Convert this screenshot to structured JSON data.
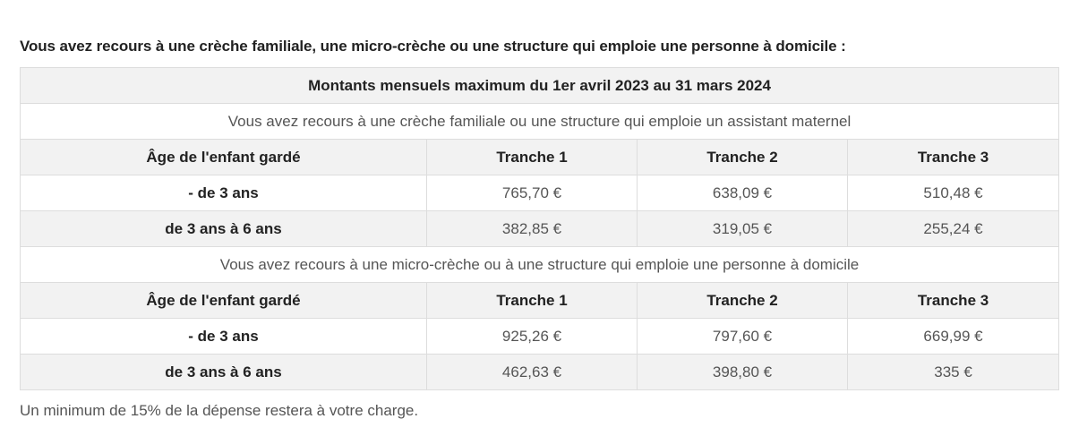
{
  "intro": "Vous avez recours à une crèche familiale, une micro-crèche ou une structure qui emploie une personne à domicile :",
  "table": {
    "title": "Montants mensuels maximum du 1er avril 2023 au 31 mars 2024",
    "sections": [
      {
        "heading": "Vous avez recours à une crèche familiale ou une structure qui emploie un assistant maternel",
        "headers": [
          "Âge de l'enfant gardé",
          "Tranche 1",
          "Tranche 2",
          "Tranche 3"
        ],
        "rows": [
          {
            "age": "- de 3 ans",
            "values": [
              "765,70 €",
              "638,09 €",
              "510,48 €"
            ]
          },
          {
            "age": "de 3 ans à 6 ans",
            "values": [
              "382,85 €",
              "319,05 €",
              "255,24 €"
            ]
          }
        ]
      },
      {
        "heading": "Vous avez recours à une micro-crèche ou à une structure qui emploie une personne à domicile",
        "headers": [
          "Âge de l'enfant gardé",
          "Tranche 1",
          "Tranche 2",
          "Tranche 3"
        ],
        "rows": [
          {
            "age": "- de 3 ans",
            "values": [
              "925,26 €",
              "797,60 €",
              "669,99 €"
            ]
          },
          {
            "age": "de 3 ans à 6 ans",
            "values": [
              "462,63 €",
              "398,80 €",
              "335 €"
            ]
          }
        ]
      }
    ]
  },
  "footer": "Un minimum de 15% de la dépense restera à votre charge."
}
